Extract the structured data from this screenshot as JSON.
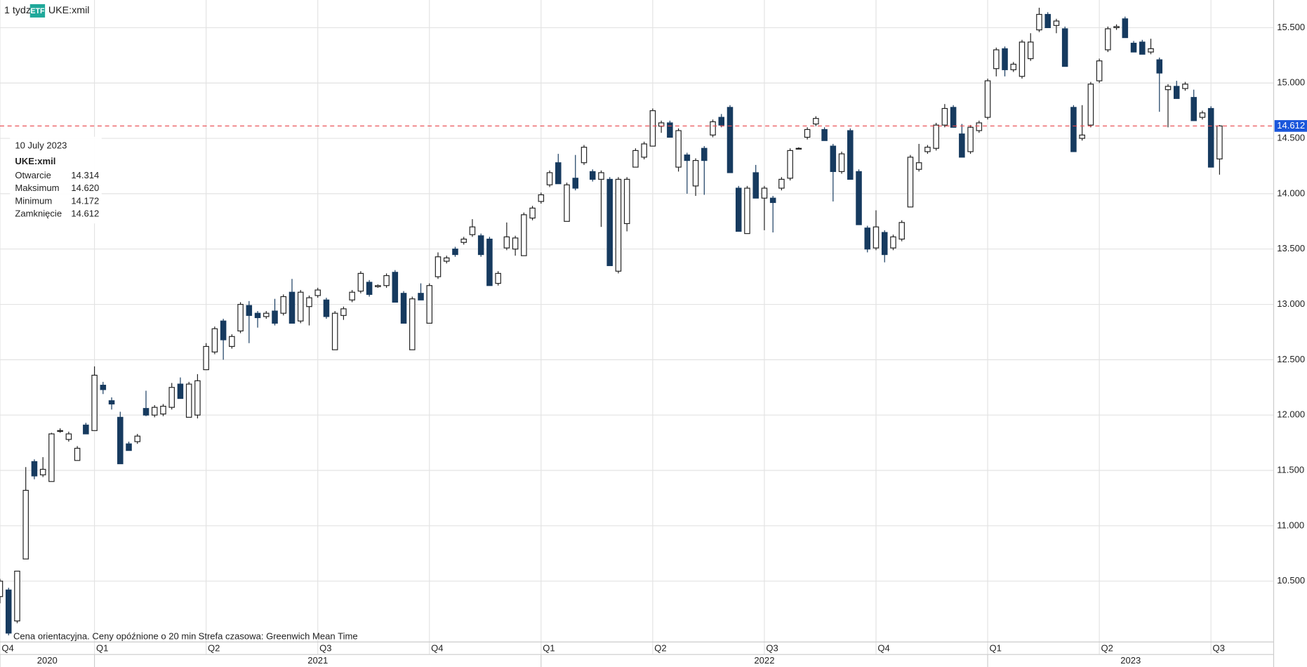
{
  "header": {
    "interval": "1 tydz",
    "badge": "ETF",
    "symbol": "UKE:xmil"
  },
  "footer": {
    "note": "Cena orientacyjna. Ceny opóźnione o 20 min",
    "timezone": "Strefa czasowa: Greenwich Mean Time"
  },
  "tooltip": {
    "date": "10 July 2023",
    "symbol": "UKE:xmil",
    "rows": [
      {
        "label": "Otwarcie",
        "value": "14.314"
      },
      {
        "label": "Maksimum",
        "value": "14.620"
      },
      {
        "label": "Minimum",
        "value": "14.172"
      },
      {
        "label": "Zamknięcie",
        "value": "14.612"
      }
    ]
  },
  "chart_data": {
    "type": "candlestick",
    "up_color": "#ffffff",
    "down_color": "#163a5f",
    "outline_color": "#222222",
    "grid": true,
    "last_price": {
      "value": 14.612,
      "label": "14.612",
      "line_color": "#e8474c",
      "label_color": "#1a56db"
    },
    "ylim": [
      9.95,
      15.75
    ],
    "yticks": [
      {
        "value": 10.5,
        "label": "10.500"
      },
      {
        "value": 11,
        "label": "11.000"
      },
      {
        "value": 11.5,
        "label": "11.500"
      },
      {
        "value": 12,
        "label": "12.000"
      },
      {
        "value": 12.5,
        "label": "12.500"
      },
      {
        "value": 13,
        "label": "13.000"
      },
      {
        "value": 13.5,
        "label": "13.500"
      },
      {
        "value": 14,
        "label": "14.000"
      },
      {
        "value": 14.5,
        "label": "14.500"
      },
      {
        "value": 15,
        "label": "15.000"
      },
      {
        "value": 15.5,
        "label": "15.500"
      }
    ],
    "xlim": [
      0,
      148.3
    ],
    "xticks": [
      {
        "value": 0,
        "label": "Q4"
      },
      {
        "value": 11,
        "label": "Q1"
      },
      {
        "value": 24,
        "label": "Q2"
      },
      {
        "value": 37,
        "label": "Q3"
      },
      {
        "value": 50,
        "label": "Q4"
      },
      {
        "value": 63,
        "label": "Q1"
      },
      {
        "value": 76,
        "label": "Q2"
      },
      {
        "value": 89,
        "label": "Q3"
      },
      {
        "value": 102,
        "label": "Q4"
      },
      {
        "value": 115,
        "label": "Q1"
      },
      {
        "value": 128,
        "label": "Q2"
      },
      {
        "value": 141,
        "label": "Q3"
      }
    ],
    "year_ticks": [
      {
        "value": 0,
        "label": "2020"
      },
      {
        "value": 11,
        "label": "2021"
      },
      {
        "value": 63,
        "label": "2022"
      },
      {
        "value": 115,
        "label": "2023"
      }
    ],
    "open": [
      10.36,
      10.42,
      10.14,
      10.7,
      11.58,
      11.46,
      11.4,
      11.86,
      11.78,
      11.59,
      11.91,
      11.86,
      12.27,
      12.13,
      11.98,
      11.74,
      11.76,
      12.06,
      12.0,
      12.01,
      12.07,
      12.28,
      11.98,
      12.0,
      12.41,
      12.57,
      12.85,
      12.62,
      12.76,
      12.99,
      12.92,
      12.89,
      12.94,
      12.92,
      13.11,
      12.85,
      12.98,
      13.08,
      13.04,
      12.59,
      12.9,
      13.04,
      13.12,
      13.2,
      13.16,
      13.17,
      13.29,
      13.1,
      12.59,
      13.1,
      12.83,
      13.25,
      13.39,
      13.5,
      13.56,
      13.63,
      13.62,
      13.59,
      13.19,
      13.51,
      13.5,
      13.44,
      13.78,
      13.93,
      14.08,
      14.28,
      13.75,
      14.14,
      14.28,
      14.2,
      14.13,
      14.13,
      13.3,
      13.73,
      14.24,
      14.33,
      14.43,
      14.61,
      14.64,
      14.24,
      14.35,
      14.07,
      14.41,
      14.53,
      14.69,
      14.78,
      14.05,
      13.64,
      14.19,
      13.96,
      13.96,
      14.05,
      14.14,
      14.41,
      14.51,
      14.63,
      14.58,
      14.43,
      14.2,
      14.57,
      14.2,
      13.69,
      13.51,
      13.65,
      13.51,
      13.59,
      13.88,
      14.22,
      14.38,
      14.41,
      14.62,
      14.78,
      14.54,
      14.38,
      14.57,
      14.69,
      15.13,
      15.31,
      15.12,
      15.06,
      15.22,
      15.48,
      15.62,
      15.52,
      15.49,
      14.78,
      14.5,
      14.62,
      15.02,
      15.3,
      15.5,
      15.58,
      15.36,
      15.37,
      15.28,
      15.21,
      14.94,
      14.97,
      14.95,
      14.87,
      14.69,
      14.77,
      14.314
    ],
    "high": [
      10.52,
      10.44,
      10.59,
      11.53,
      11.6,
      11.62,
      11.84,
      11.88,
      11.85,
      11.72,
      11.93,
      12.44,
      12.3,
      12.16,
      12.03,
      11.76,
      11.83,
      12.22,
      12.09,
      12.1,
      12.29,
      12.34,
      12.3,
      12.37,
      12.65,
      12.8,
      12.87,
      12.73,
      13.02,
      13.03,
      12.94,
      12.94,
      13.05,
      13.09,
      13.23,
      13.13,
      13.08,
      13.15,
      13.06,
      12.94,
      12.98,
      13.13,
      13.3,
      13.22,
      13.18,
      13.28,
      13.31,
      13.12,
      13.07,
      13.19,
      13.19,
      13.47,
      13.44,
      13.52,
      13.61,
      13.77,
      13.64,
      13.61,
      13.3,
      13.74,
      13.62,
      13.83,
      13.89,
      14.01,
      14.21,
      14.36,
      14.1,
      14.35,
      14.44,
      14.22,
      14.21,
      14.15,
      14.15,
      14.15,
      14.41,
      14.47,
      14.77,
      14.66,
      14.66,
      14.59,
      14.37,
      14.32,
      14.43,
      14.67,
      14.72,
      14.8,
      14.07,
      14.07,
      14.26,
      14.07,
      13.98,
      14.15,
      14.41,
      14.42,
      14.6,
      14.7,
      14.6,
      14.45,
      14.38,
      14.59,
      14.22,
      13.71,
      13.85,
      13.67,
      13.63,
      13.76,
      14.35,
      14.45,
      14.44,
      14.64,
      14.81,
      14.8,
      14.63,
      14.62,
      14.66,
      15.04,
      15.32,
      15.33,
      15.19,
      15.39,
      15.45,
      15.68,
      15.64,
      15.58,
      15.51,
      14.8,
      14.8,
      15.01,
      15.22,
      15.51,
      15.53,
      15.6,
      15.38,
      15.39,
      15.4,
      15.23,
      14.99,
      15.02,
      15.01,
      14.94,
      14.75,
      14.79,
      14.62
    ],
    "low": [
      10.3,
      10.01,
      10.12,
      10.7,
      11.42,
      11.44,
      11.4,
      11.84,
      11.76,
      11.59,
      11.83,
      11.86,
      12.19,
      12.05,
      11.56,
      11.68,
      11.74,
      11.99,
      11.98,
      11.99,
      12.05,
      12.15,
      11.98,
      11.97,
      12.41,
      12.55,
      12.5,
      12.6,
      12.74,
      12.65,
      12.79,
      12.87,
      12.81,
      12.9,
      12.83,
      12.83,
      12.81,
      13.06,
      12.87,
      12.59,
      12.86,
      13.02,
      13.1,
      13.07,
      13.15,
      13.15,
      13.02,
      12.83,
      12.59,
      13.04,
      12.83,
      13.23,
      13.37,
      13.43,
      13.54,
      13.61,
      13.43,
      13.17,
      13.17,
      13.49,
      13.44,
      13.44,
      13.76,
      13.91,
      14.06,
      14.09,
      13.75,
      14.03,
      14.26,
      14.11,
      13.7,
      13.35,
      13.28,
      13.66,
      14.24,
      14.31,
      14.43,
      14.55,
      14.51,
      14.2,
      14.0,
      13.98,
      13.99,
      14.51,
      14.6,
      14.19,
      13.66,
      13.64,
      13.96,
      13.67,
      13.65,
      14.03,
      14.12,
      14.4,
      14.49,
      14.61,
      14.48,
      13.93,
      14.18,
      14.13,
      13.72,
      13.47,
      13.49,
      13.38,
      13.49,
      13.57,
      13.88,
      14.2,
      14.36,
      14.39,
      14.6,
      14.6,
      14.33,
      14.36,
      14.55,
      14.67,
      15.06,
      15.06,
      15.1,
      15.04,
      15.2,
      15.46,
      15.5,
      15.45,
      15.15,
      14.38,
      14.48,
      14.6,
      15.0,
      15.28,
      15.48,
      15.41,
      15.28,
      15.26,
      15.26,
      14.74,
      14.6,
      14.86,
      14.93,
      14.66,
      14.67,
      14.24,
      14.172
    ],
    "close": [
      10.5,
      10.03,
      10.59,
      11.32,
      11.45,
      11.51,
      11.83,
      11.86,
      11.83,
      11.7,
      11.83,
      12.36,
      12.23,
      12.1,
      11.56,
      11.68,
      11.81,
      12.0,
      12.07,
      12.08,
      12.25,
      12.15,
      12.28,
      12.31,
      12.62,
      12.78,
      12.68,
      12.71,
      13.0,
      12.9,
      12.88,
      12.92,
      12.83,
      13.07,
      12.83,
      13.11,
      13.06,
      13.13,
      12.89,
      12.92,
      12.96,
      13.11,
      13.28,
      13.09,
      13.17,
      13.26,
      13.02,
      12.83,
      13.05,
      13.04,
      13.17,
      13.43,
      13.42,
      13.45,
      13.59,
      13.7,
      13.45,
      13.17,
      13.28,
      13.61,
      13.6,
      13.81,
      13.87,
      13.99,
      14.19,
      14.09,
      14.08,
      14.05,
      14.42,
      14.13,
      14.19,
      13.35,
      14.13,
      14.13,
      14.39,
      14.45,
      14.75,
      14.64,
      14.51,
      14.57,
      14.3,
      14.3,
      14.3,
      14.65,
      14.62,
      14.19,
      13.66,
      14.05,
      13.96,
      14.05,
      13.92,
      14.13,
      14.39,
      14.41,
      14.58,
      14.68,
      14.48,
      14.2,
      14.36,
      14.13,
      13.72,
      13.5,
      13.7,
      13.45,
      13.61,
      13.74,
      14.33,
      14.28,
      14.42,
      14.62,
      14.77,
      14.6,
      14.33,
      14.6,
      14.64,
      15.02,
      15.3,
      15.12,
      15.17,
      15.37,
      15.37,
      15.62,
      15.5,
      15.56,
      15.15,
      14.38,
      14.53,
      14.99,
      15.2,
      15.49,
      15.51,
      15.41,
      15.28,
      15.26,
      15.31,
      15.09,
      14.97,
      14.86,
      14.99,
      14.66,
      14.73,
      14.24,
      14.612
    ]
  }
}
